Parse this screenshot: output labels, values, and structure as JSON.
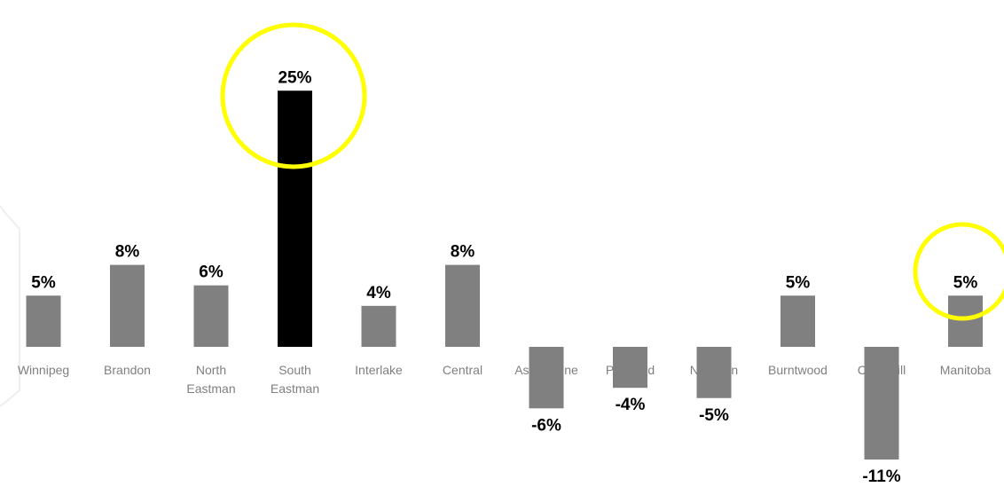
{
  "chart_data": {
    "type": "bar",
    "categories": [
      [
        "Winnipeg"
      ],
      [
        "Brandon"
      ],
      [
        "North",
        "Eastman"
      ],
      [
        "South",
        "Eastman"
      ],
      [
        "Interlake"
      ],
      [
        "Central"
      ],
      [
        "Assiniboine"
      ],
      [
        "Parkland"
      ],
      [
        "Nor-Man"
      ],
      [
        "Burntwood"
      ],
      [
        "Churchill"
      ],
      [
        "Manitoba"
      ]
    ],
    "values": [
      5,
      8,
      6,
      25,
      4,
      8,
      -6,
      -4,
      -5,
      5,
      -11,
      5
    ],
    "data_labels": [
      "5%",
      "8%",
      "6%",
      "25%",
      "4%",
      "8%",
      "-6%",
      "-4%",
      "-5%",
      "5%",
      "-11%",
      "5%"
    ],
    "highlight_index": 3,
    "circled_indices": [
      3,
      11
    ],
    "title": "",
    "xlabel": "",
    "ylabel": "",
    "ylim": [
      -12,
      25
    ],
    "grid": false,
    "legend": "none"
  },
  "colors": {
    "bar": "#808080",
    "highlight_bar": "#000000",
    "label_text": "#000000",
    "category_text": "#7f7f7f",
    "circle": "#ffff00",
    "watermark": "#eeeeee"
  }
}
